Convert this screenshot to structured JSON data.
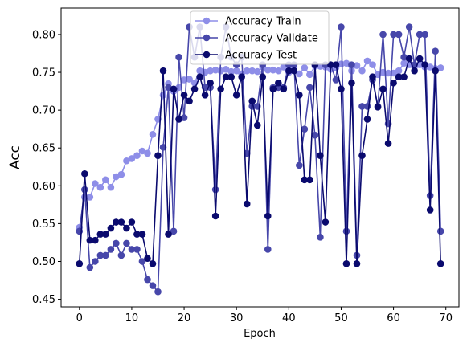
{
  "chart_data": {
    "type": "line",
    "title": "",
    "xlabel": "Epoch",
    "ylabel": "Acc",
    "ylabel_color": "#0000cc",
    "xlim": [
      -3.5,
      72.5
    ],
    "ylim": [
      0.44,
      0.835
    ],
    "xticks": [
      0,
      10,
      20,
      30,
      40,
      50,
      60,
      70
    ],
    "yticks": [
      0.45,
      0.5,
      0.55,
      0.6,
      0.65,
      0.7,
      0.75,
      0.8
    ],
    "ytick_labels": [
      "0.45",
      "0.50",
      "0.55",
      "0.60",
      "0.65",
      "0.70",
      "0.75",
      "0.80"
    ],
    "grid": false,
    "legend_position": "top-center",
    "x": [
      0,
      1,
      2,
      3,
      4,
      5,
      6,
      7,
      8,
      9,
      10,
      11,
      12,
      13,
      14,
      15,
      16,
      17,
      18,
      19,
      20,
      21,
      22,
      23,
      24,
      25,
      26,
      27,
      28,
      29,
      30,
      31,
      32,
      33,
      34,
      35,
      36,
      37,
      38,
      39,
      40,
      41,
      42,
      43,
      44,
      45,
      46,
      47,
      48,
      49,
      50,
      51,
      52,
      53,
      54,
      55,
      56,
      57,
      58,
      59,
      60,
      61,
      62,
      63,
      64,
      65,
      66,
      67,
      68,
      69
    ],
    "series": [
      {
        "name": "Accuracy Train",
        "color": "#8e8ee8",
        "values": [
          0.545,
          0.585,
          0.585,
          0.603,
          0.598,
          0.608,
          0.598,
          0.612,
          0.615,
          0.633,
          0.636,
          0.64,
          0.646,
          0.643,
          0.668,
          0.688,
          0.72,
          0.735,
          0.725,
          0.73,
          0.74,
          0.741,
          0.736,
          0.752,
          0.75,
          0.752,
          0.753,
          0.752,
          0.754,
          0.751,
          0.752,
          0.748,
          0.752,
          0.752,
          0.751,
          0.757,
          0.753,
          0.753,
          0.752,
          0.757,
          0.75,
          0.756,
          0.748,
          0.756,
          0.747,
          0.758,
          0.758,
          0.757,
          0.754,
          0.756,
          0.761,
          0.762,
          0.752,
          0.759,
          0.752,
          0.765,
          0.76,
          0.747,
          0.75,
          0.749,
          0.749,
          0.752,
          0.762,
          0.76,
          0.757,
          0.76,
          0.757,
          0.757,
          0.755,
          0.756
        ]
      },
      {
        "name": "Accuracy Validate",
        "color": "#4747aa",
        "values": [
          0.54,
          0.595,
          0.492,
          0.5,
          0.508,
          0.508,
          0.516,
          0.524,
          0.508,
          0.524,
          0.516,
          0.516,
          0.5,
          0.476,
          0.468,
          0.46,
          0.651,
          0.73,
          0.54,
          0.77,
          0.69,
          0.81,
          0.77,
          0.81,
          0.73,
          0.73,
          0.595,
          0.77,
          0.81,
          0.77,
          0.76,
          0.77,
          0.643,
          0.705,
          0.705,
          0.76,
          0.516,
          0.73,
          0.73,
          0.73,
          0.76,
          0.76,
          0.627,
          0.675,
          0.73,
          0.667,
          0.532,
          0.76,
          0.76,
          0.74,
          0.81,
          0.54,
          0.76,
          0.508,
          0.705,
          0.705,
          0.74,
          0.705,
          0.8,
          0.682,
          0.8,
          0.8,
          0.77,
          0.81,
          0.76,
          0.8,
          0.8,
          0.587,
          0.778,
          0.54
        ]
      },
      {
        "name": "Accuracy Test",
        "color": "#0a0a6e",
        "values": [
          0.497,
          0.616,
          0.528,
          0.528,
          0.536,
          0.536,
          0.544,
          0.552,
          0.552,
          0.544,
          0.552,
          0.536,
          0.536,
          0.504,
          0.497,
          0.64,
          0.752,
          0.536,
          0.728,
          0.688,
          0.72,
          0.712,
          0.728,
          0.744,
          0.72,
          0.736,
          0.56,
          0.728,
          0.744,
          0.744,
          0.72,
          0.744,
          0.576,
          0.712,
          0.68,
          0.744,
          0.56,
          0.728,
          0.736,
          0.728,
          0.752,
          0.752,
          0.72,
          0.608,
          0.608,
          0.76,
          0.64,
          0.552,
          0.76,
          0.76,
          0.728,
          0.497,
          0.736,
          0.497,
          0.64,
          0.688,
          0.744,
          0.704,
          0.728,
          0.656,
          0.736,
          0.744,
          0.744,
          0.768,
          0.752,
          0.768,
          0.76,
          0.568,
          0.752,
          0.497
        ]
      }
    ]
  }
}
